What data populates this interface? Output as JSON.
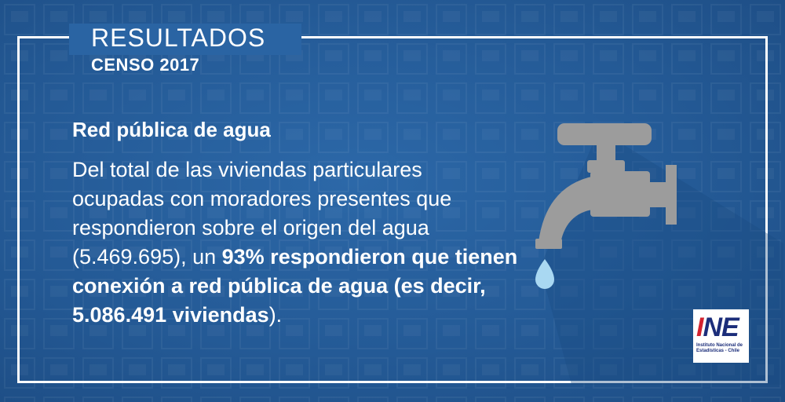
{
  "header": {
    "title": "RESULTADOS",
    "subtitle": "CENSO 2017"
  },
  "content": {
    "heading": "Red pública de agua",
    "body_intro": "Del total de las viviendas particulares ocupadas con moradores presentes que respondieron sobre el origen del agua (5.469.695), un ",
    "body_highlight": "93% respondieron que tienen conexión a red pública de agua (es decir, 5.086.491 viviendas",
    "body_end": ")."
  },
  "logo": {
    "mark_i": "I",
    "mark_rest": "NE",
    "caption": "Instituto Nacional de\nEstadísticas - Chile"
  },
  "colors": {
    "background": "#245a96",
    "frame": "#ffffff",
    "faucet": "#9c9c9c",
    "drop": "#a9d8f2",
    "logo_red": "#d4232f",
    "logo_blue": "#1b2d7a"
  },
  "icons": [
    "faucet-icon",
    "water-drop-icon"
  ]
}
